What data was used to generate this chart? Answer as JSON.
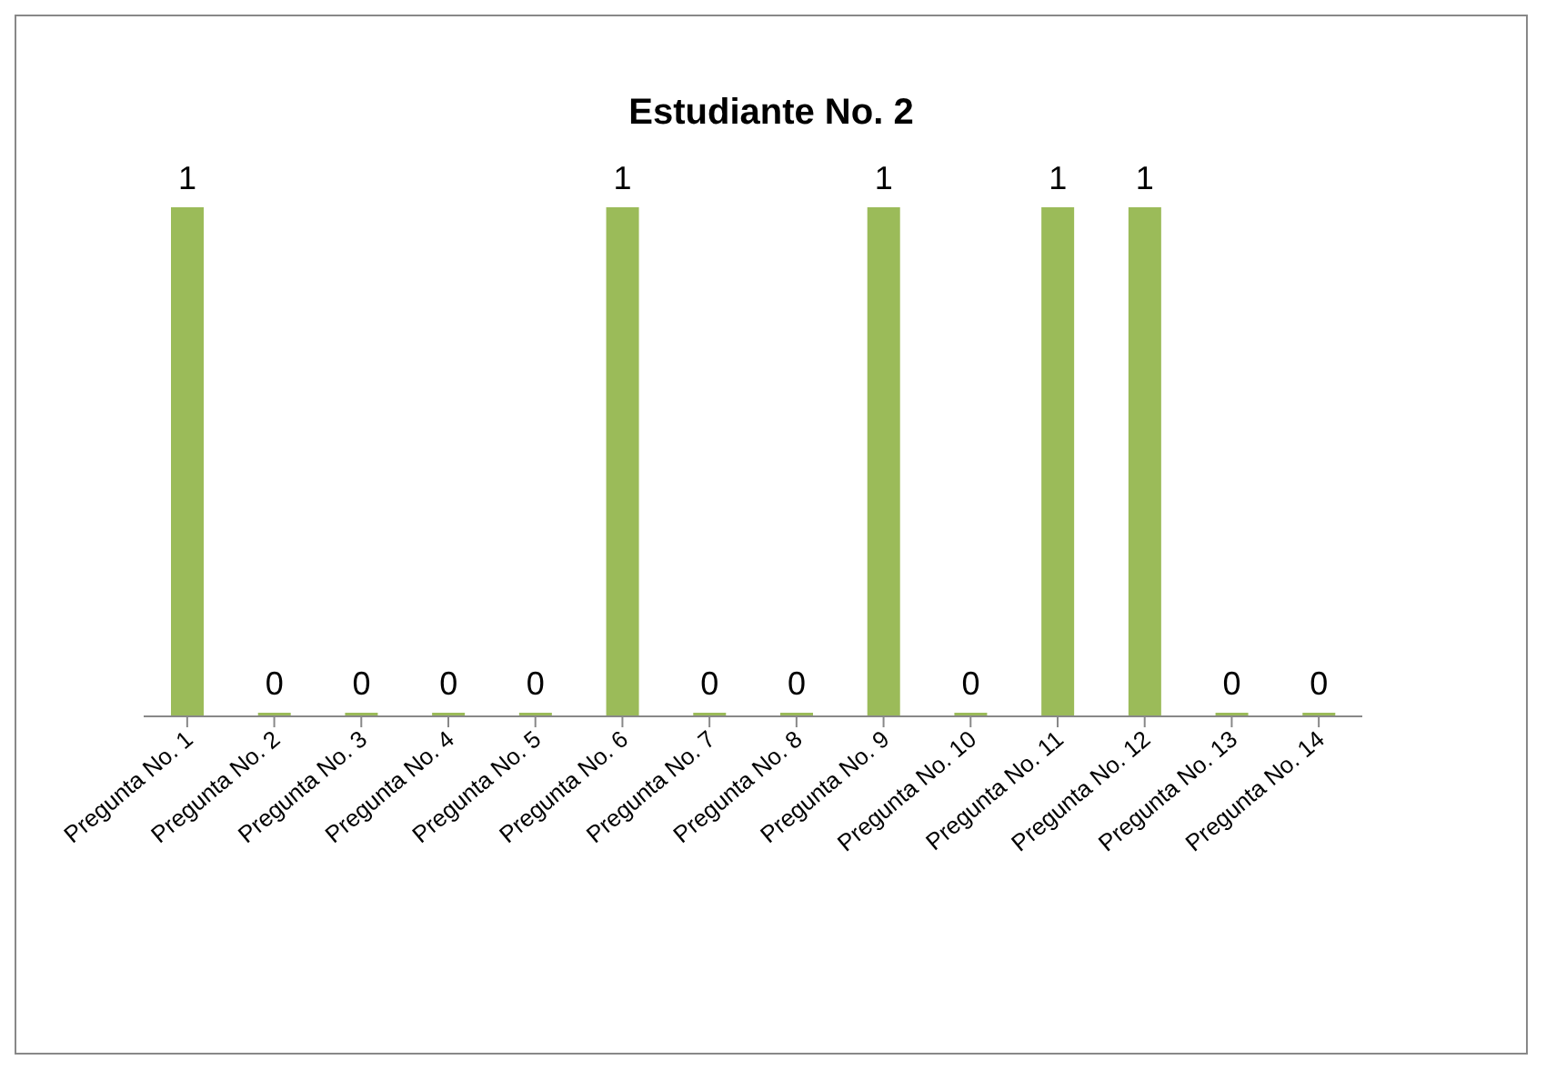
{
  "chart_data": {
    "type": "bar",
    "title": "Estudiante No. 2",
    "categories": [
      "Pregunta No. 1",
      "Pregunta No. 2",
      "Pregunta No. 3",
      "Pregunta No. 4",
      "Pregunta No. 5",
      "Pregunta No. 6",
      "Pregunta No. 7",
      "Pregunta No. 8",
      "Pregunta No. 9",
      "Pregunta No. 10",
      "Pregunta No. 11",
      "Pregunta No. 12",
      "Pregunta No. 13",
      "Pregunta No. 14"
    ],
    "values": [
      1,
      0,
      0,
      0,
      0,
      1,
      0,
      0,
      1,
      0,
      1,
      1,
      0,
      0
    ],
    "color": "#9bbb59",
    "data_labels": true,
    "grid": false,
    "legend": false
  }
}
